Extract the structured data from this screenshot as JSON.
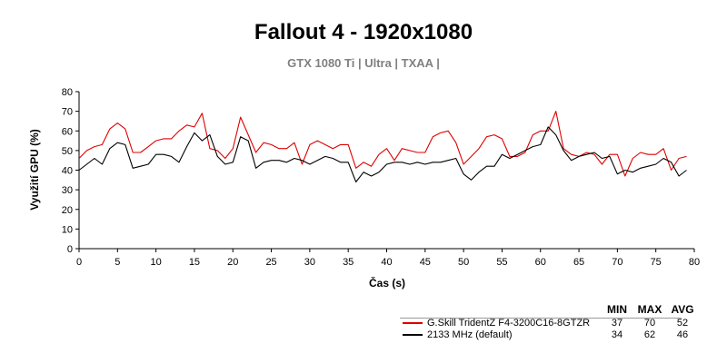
{
  "chart_data": {
    "type": "line",
    "title": "Fallout 4 - 1920x1080",
    "subtitle": "GTX 1080 Ti | Ultra | TXAA |",
    "xlabel": "Čas (s)",
    "ylabel": "Využití GPU (%)",
    "xlim": [
      0,
      80
    ],
    "ylim": [
      0,
      80
    ],
    "xticks": [
      0,
      5,
      10,
      15,
      20,
      25,
      30,
      35,
      40,
      45,
      50,
      55,
      60,
      65,
      70,
      75,
      80
    ],
    "yticks": [
      0,
      10,
      20,
      30,
      40,
      50,
      60,
      70,
      80
    ],
    "grid": false,
    "legend_position": "bottom-right",
    "stats_headers": [
      "MIN",
      "MAX",
      "AVG"
    ],
    "series": [
      {
        "name": "G.Skill TridentZ F4-3200C16-8GTZR",
        "color": "#e00000",
        "min": "37",
        "max": "70",
        "avg": "52",
        "values": [
          46,
          50,
          52,
          53,
          61,
          64,
          61,
          49,
          49,
          52,
          55,
          56,
          56,
          60,
          63,
          62,
          69,
          51,
          50,
          46,
          51,
          67,
          58,
          49,
          54,
          53,
          51,
          51,
          54,
          43,
          53,
          55,
          53,
          51,
          53,
          53,
          41,
          44,
          42,
          48,
          51,
          45,
          51,
          50,
          49,
          49,
          57,
          59,
          60,
          54,
          43,
          47,
          51,
          57,
          58,
          56,
          47,
          47,
          49,
          58,
          60,
          60,
          70,
          51,
          48,
          47,
          49,
          48,
          43,
          48,
          48,
          37,
          46,
          49,
          48,
          48,
          51,
          40,
          46,
          47
        ]
      },
      {
        "name": "2133 MHz (default)",
        "color": "#000000",
        "min": "34",
        "max": "62",
        "avg": "46",
        "values": [
          40,
          43,
          46,
          43,
          51,
          54,
          53,
          41,
          42,
          43,
          48,
          48,
          47,
          44,
          52,
          59,
          55,
          58,
          47,
          43,
          44,
          57,
          55,
          41,
          44,
          45,
          45,
          44,
          46,
          45,
          43,
          45,
          47,
          46,
          44,
          44,
          34,
          39,
          37,
          39,
          43,
          44,
          44,
          43,
          44,
          43,
          44,
          44,
          45,
          46,
          38,
          35,
          39,
          42,
          42,
          48,
          46,
          48,
          50,
          52,
          53,
          62,
          58,
          50,
          45,
          47,
          48,
          49,
          46,
          47,
          38,
          40,
          39,
          41,
          42,
          43,
          46,
          44,
          37,
          40
        ]
      }
    ]
  }
}
